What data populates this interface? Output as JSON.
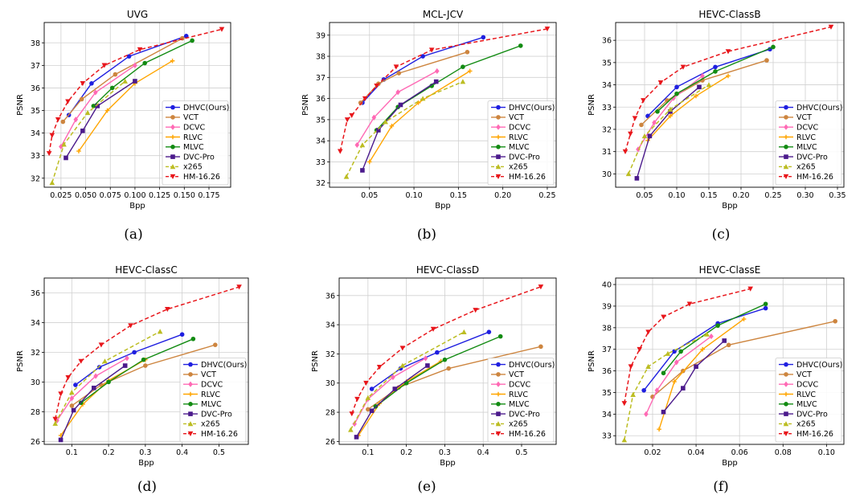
{
  "chart_data": [
    {
      "type": "line",
      "title": "UVG",
      "xlabel": "Bpp",
      "ylabel": "PSNR",
      "caption": "(a)",
      "xlim": [
        0.008,
        0.197
      ],
      "ylim": [
        31.6,
        38.9
      ],
      "xticks": [
        0.025,
        0.05,
        0.075,
        0.1,
        0.125,
        0.15,
        0.175
      ],
      "xtick_labels": [
        "0.025",
        "0.050",
        "0.075",
        "0.100",
        "0.125",
        "0.150",
        "0.175"
      ],
      "yticks": [
        32,
        33,
        34,
        35,
        36,
        37,
        38
      ],
      "yticklabels": [
        "32",
        "33",
        "34",
        "35",
        "36",
        "37",
        "38"
      ],
      "legend": "lower-right",
      "grid": true,
      "series": [
        {
          "name": "DHVC(Ours)",
          "x": [
            0.033,
            0.056,
            0.094,
            0.152
          ],
          "y": [
            34.8,
            36.2,
            37.4,
            38.3
          ]
        },
        {
          "name": "VCT",
          "x": [
            0.027,
            0.046,
            0.08,
            0.148
          ],
          "y": [
            34.5,
            35.5,
            36.6,
            38.2
          ]
        },
        {
          "name": "DCVC",
          "x": [
            0.025,
            0.04,
            0.06,
            0.1
          ],
          "y": [
            33.4,
            34.6,
            35.8,
            37.0
          ]
        },
        {
          "name": "RLVC",
          "x": [
            0.043,
            0.072,
            0.1,
            0.138
          ],
          "y": [
            33.2,
            35.0,
            36.2,
            37.2
          ]
        },
        {
          "name": "MLVC",
          "x": [
            0.058,
            0.077,
            0.11,
            0.158
          ],
          "y": [
            35.2,
            36.0,
            37.1,
            38.1
          ]
        },
        {
          "name": "DVC-Pro",
          "x": [
            0.03,
            0.047,
            0.062,
            0.1
          ],
          "y": [
            32.9,
            34.1,
            35.2,
            36.3
          ]
        },
        {
          "name": "x265",
          "x": [
            0.016,
            0.028,
            0.052,
            0.09
          ],
          "y": [
            31.8,
            33.5,
            34.9,
            36.3
          ]
        },
        {
          "name": "HM-16.26",
          "x": [
            0.013,
            0.016,
            0.022,
            0.032,
            0.047,
            0.069,
            0.105,
            0.188
          ],
          "y": [
            33.1,
            33.9,
            34.6,
            35.4,
            36.2,
            37.0,
            37.7,
            38.6
          ]
        }
      ]
    },
    {
      "type": "line",
      "title": "MCL-JCV",
      "xlabel": "Bpp",
      "ylabel": "PSNR",
      "caption": "(b)",
      "xlim": [
        0.005,
        0.26
      ],
      "ylim": [
        31.8,
        39.6
      ],
      "xticks": [
        0.05,
        0.1,
        0.15,
        0.2,
        0.25
      ],
      "xtick_labels": [
        "0.05",
        "0.10",
        "0.15",
        "0.20",
        "0.25"
      ],
      "yticks": [
        32,
        33,
        34,
        35,
        36,
        37,
        38,
        39
      ],
      "yticklabels": [
        "32",
        "33",
        "34",
        "35",
        "36",
        "37",
        "38",
        "39"
      ],
      "legend": "lower-right",
      "grid": true,
      "series": [
        {
          "name": "DHVC(Ours)",
          "x": [
            0.042,
            0.066,
            0.11,
            0.178
          ],
          "y": [
            35.8,
            36.9,
            38.0,
            38.9
          ]
        },
        {
          "name": "VCT",
          "x": [
            0.04,
            0.06,
            0.083,
            0.16
          ],
          "y": [
            35.8,
            36.7,
            37.2,
            38.2
          ]
        },
        {
          "name": "DCVC",
          "x": [
            0.036,
            0.055,
            0.082,
            0.126
          ],
          "y": [
            33.8,
            35.1,
            36.3,
            37.3
          ]
        },
        {
          "name": "RLVC",
          "x": [
            0.05,
            0.075,
            0.105,
            0.163
          ],
          "y": [
            33.0,
            34.7,
            35.8,
            37.3
          ]
        },
        {
          "name": "MLVC",
          "x": [
            0.058,
            0.082,
            0.12,
            0.155,
            0.22
          ],
          "y": [
            34.5,
            35.6,
            36.6,
            37.5,
            38.5
          ]
        },
        {
          "name": "DVC-Pro",
          "x": [
            0.042,
            0.06,
            0.085,
            0.125
          ],
          "y": [
            32.6,
            34.5,
            35.7,
            36.8
          ]
        },
        {
          "name": "x265",
          "x": [
            0.024,
            0.042,
            0.068,
            0.11,
            0.155
          ],
          "y": [
            32.3,
            33.8,
            34.9,
            36.0,
            36.8
          ]
        },
        {
          "name": "HM-16.26",
          "x": [
            0.017,
            0.025,
            0.03,
            0.045,
            0.058,
            0.08,
            0.12,
            0.25
          ],
          "y": [
            33.5,
            35.0,
            35.2,
            36.0,
            36.6,
            37.5,
            38.3,
            39.3
          ]
        }
      ]
    },
    {
      "type": "line",
      "title": "HEVC-ClassB",
      "xlabel": "Bpp",
      "ylabel": "PSNR",
      "caption": "(c)",
      "xlim": [
        0.005,
        0.36
      ],
      "ylim": [
        29.4,
        36.8
      ],
      "xticks": [
        0.05,
        0.1,
        0.15,
        0.2,
        0.25,
        0.3,
        0.35
      ],
      "xtick_labels": [
        "0.05",
        "0.10",
        "0.15",
        "0.20",
        "0.25",
        "0.30",
        "0.35"
      ],
      "yticks": [
        30,
        31,
        32,
        33,
        34,
        35,
        36
      ],
      "yticklabels": [
        "30",
        "31",
        "32",
        "33",
        "34",
        "35",
        "36"
      ],
      "legend": "lower-right",
      "grid": true,
      "series": [
        {
          "name": "DHVC(Ours)",
          "x": [
            0.055,
            0.1,
            0.16,
            0.245
          ],
          "y": [
            32.6,
            33.9,
            34.8,
            35.6
          ]
        },
        {
          "name": "VCT",
          "x": [
            0.045,
            0.085,
            0.14,
            0.24
          ],
          "y": [
            32.2,
            33.3,
            34.2,
            35.1
          ]
        },
        {
          "name": "DCVC",
          "x": [
            0.04,
            0.065,
            0.095,
            0.14
          ],
          "y": [
            31.1,
            32.3,
            33.4,
            34.4
          ]
        },
        {
          "name": "RLVC",
          "x": [
            0.055,
            0.09,
            0.13,
            0.18
          ],
          "y": [
            31.5,
            32.6,
            33.5,
            34.4
          ]
        },
        {
          "name": "MLVC",
          "x": [
            0.07,
            0.1,
            0.16,
            0.25
          ],
          "y": [
            32.8,
            33.6,
            34.6,
            35.7
          ]
        },
        {
          "name": "DVC-Pro",
          "x": [
            0.038,
            0.058,
            0.09,
            0.135
          ],
          "y": [
            29.8,
            31.7,
            32.8,
            33.9
          ]
        },
        {
          "name": "x265",
          "x": [
            0.025,
            0.05,
            0.09,
            0.15
          ],
          "y": [
            30.0,
            31.7,
            32.9,
            34.0
          ]
        },
        {
          "name": "HM-16.26",
          "x": [
            0.02,
            0.028,
            0.035,
            0.048,
            0.075,
            0.11,
            0.18,
            0.34
          ],
          "y": [
            31.0,
            31.8,
            32.5,
            33.3,
            34.1,
            34.8,
            35.5,
            36.6
          ]
        }
      ]
    },
    {
      "type": "line",
      "title": "HEVC-ClassC",
      "xlabel": "Bpp",
      "ylabel": "PSNR",
      "caption": "(d)",
      "xlim": [
        0.025,
        0.58
      ],
      "ylim": [
        25.8,
        37.0
      ],
      "xticks": [
        0.1,
        0.2,
        0.3,
        0.4,
        0.5
      ],
      "xtick_labels": [
        "0.1",
        "0.2",
        "0.3",
        "0.4",
        "0.5"
      ],
      "yticks": [
        26,
        28,
        30,
        32,
        34,
        36
      ],
      "yticklabels": [
        "26",
        "28",
        "30",
        "32",
        "34",
        "36"
      ],
      "legend": "lower-right",
      "grid": true,
      "series": [
        {
          "name": "DHVC(Ours)",
          "x": [
            0.11,
            0.175,
            0.27,
            0.4
          ],
          "y": [
            29.8,
            31.0,
            32.0,
            33.2
          ]
        },
        {
          "name": "VCT",
          "x": [
            0.1,
            0.18,
            0.3,
            0.49
          ],
          "y": [
            28.4,
            29.8,
            31.1,
            32.5
          ]
        },
        {
          "name": "DCVC",
          "x": [
            0.06,
            0.1,
            0.165,
            0.25
          ],
          "y": [
            27.4,
            28.9,
            30.4,
            31.6
          ]
        },
        {
          "name": "RLVC",
          "x": [
            0.07,
            0.13,
            0.2,
            0.3
          ],
          "y": [
            26.4,
            28.5,
            30.1,
            31.5
          ]
        },
        {
          "name": "MLVC",
          "x": [
            0.125,
            0.2,
            0.295,
            0.43
          ],
          "y": [
            28.6,
            30.0,
            31.5,
            32.9
          ]
        },
        {
          "name": "DVC-Pro",
          "x": [
            0.07,
            0.105,
            0.16,
            0.245
          ],
          "y": [
            26.1,
            28.1,
            29.6,
            31.1
          ]
        },
        {
          "name": "x265",
          "x": [
            0.055,
            0.1,
            0.19,
            0.34
          ],
          "y": [
            27.2,
            29.3,
            31.4,
            33.4
          ]
        },
        {
          "name": "HM-16.26",
          "x": [
            0.055,
            0.07,
            0.09,
            0.125,
            0.18,
            0.26,
            0.36,
            0.555
          ],
          "y": [
            27.5,
            29.2,
            30.3,
            31.4,
            32.5,
            33.8,
            34.9,
            36.4
          ]
        }
      ]
    },
    {
      "type": "line",
      "title": "HEVC-ClassD",
      "xlabel": "Bpp",
      "ylabel": "PSNR",
      "caption": "(e)",
      "xlim": [
        0.025,
        0.59
      ],
      "ylim": [
        25.8,
        37.2
      ],
      "xticks": [
        0.1,
        0.2,
        0.3,
        0.4,
        0.5
      ],
      "xtick_labels": [
        "0.1",
        "0.2",
        "0.3",
        "0.4",
        "0.5"
      ],
      "yticks": [
        26,
        28,
        30,
        32,
        34,
        36
      ],
      "yticklabels": [
        "26",
        "28",
        "30",
        "32",
        "34",
        "36"
      ],
      "legend": "lower-right",
      "grid": true,
      "series": [
        {
          "name": "DHVC(Ours)",
          "x": [
            0.11,
            0.185,
            0.28,
            0.415
          ],
          "y": [
            29.6,
            31.0,
            32.1,
            33.5
          ]
        },
        {
          "name": "VCT",
          "x": [
            0.1,
            0.18,
            0.31,
            0.55
          ],
          "y": [
            28.2,
            29.7,
            31.0,
            32.5
          ]
        },
        {
          "name": "DCVC",
          "x": [
            0.065,
            0.1,
            0.165,
            0.25
          ],
          "y": [
            27.2,
            28.9,
            30.4,
            31.7
          ]
        },
        {
          "name": "RLVC",
          "x": [
            0.075,
            0.13,
            0.2,
            0.29
          ],
          "y": [
            26.4,
            28.6,
            30.1,
            31.5
          ]
        },
        {
          "name": "MLVC",
          "x": [
            0.12,
            0.2,
            0.3,
            0.445
          ],
          "y": [
            28.4,
            30.0,
            31.6,
            33.2
          ]
        },
        {
          "name": "DVC-Pro",
          "x": [
            0.07,
            0.11,
            0.17,
            0.255
          ],
          "y": [
            26.3,
            28.1,
            29.6,
            31.2
          ]
        },
        {
          "name": "x265",
          "x": [
            0.055,
            0.1,
            0.19,
            0.35
          ],
          "y": [
            26.8,
            29.0,
            31.2,
            33.5
          ]
        },
        {
          "name": "HM-16.26",
          "x": [
            0.058,
            0.072,
            0.095,
            0.13,
            0.19,
            0.27,
            0.38,
            0.55
          ],
          "y": [
            27.9,
            28.9,
            30.0,
            31.1,
            32.4,
            33.7,
            35.0,
            36.6
          ]
        }
      ]
    },
    {
      "type": "line",
      "title": "HEVC-ClassE",
      "xlabel": "Bpp",
      "ylabel": "PSNR",
      "caption": "(f)",
      "xlim": [
        0.003,
        0.108
      ],
      "ylim": [
        32.6,
        40.3
      ],
      "xticks": [
        0.02,
        0.04,
        0.06,
        0.08,
        0.1
      ],
      "xtick_labels": [
        "0.02",
        "0.04",
        "0.06",
        "0.08",
        "0.10"
      ],
      "yticks": [
        33,
        34,
        35,
        36,
        37,
        38,
        39,
        40
      ],
      "yticklabels": [
        "33",
        "34",
        "35",
        "36",
        "37",
        "38",
        "39",
        "40"
      ],
      "legend": "lower-right",
      "grid": true,
      "series": [
        {
          "name": "DHVC(Ours)",
          "x": [
            0.016,
            0.03,
            0.05,
            0.072
          ],
          "y": [
            35.1,
            36.9,
            38.2,
            38.9
          ]
        },
        {
          "name": "VCT",
          "x": [
            0.02,
            0.034,
            0.055,
            0.104
          ],
          "y": [
            34.8,
            36.0,
            37.2,
            38.3
          ]
        },
        {
          "name": "DCVC",
          "x": [
            0.017,
            0.022,
            0.031,
            0.047
          ],
          "y": [
            34.0,
            35.1,
            36.4,
            37.6
          ]
        },
        {
          "name": "RLVC",
          "x": [
            0.023,
            0.03,
            0.043,
            0.062
          ],
          "y": [
            33.3,
            35.5,
            37.0,
            38.4
          ]
        },
        {
          "name": "MLVC",
          "x": [
            0.025,
            0.033,
            0.05,
            0.072
          ],
          "y": [
            35.9,
            36.9,
            38.1,
            39.1
          ]
        },
        {
          "name": "DVC-Pro",
          "x": [
            0.025,
            0.034,
            0.04,
            0.053
          ],
          "y": [
            34.1,
            35.2,
            36.2,
            37.4
          ]
        },
        {
          "name": "x265",
          "x": [
            0.007,
            0.011,
            0.018,
            0.027,
            0.045
          ],
          "y": [
            32.8,
            34.9,
            36.2,
            36.8,
            37.7
          ]
        },
        {
          "name": "HM-16.26",
          "x": [
            0.007,
            0.01,
            0.014,
            0.018,
            0.025,
            0.037,
            0.065
          ],
          "y": [
            34.5,
            36.2,
            37.0,
            37.8,
            38.5,
            39.1,
            39.8
          ]
        }
      ]
    }
  ],
  "series_styles": [
    {
      "name": "DHVC(Ours)",
      "color": "#1f1fe0",
      "marker": "circle",
      "dash": "solid"
    },
    {
      "name": "VCT",
      "color": "#cd853f",
      "marker": "circle",
      "dash": "solid"
    },
    {
      "name": "DCVC",
      "color": "#ff69b4",
      "marker": "diamond",
      "dash": "solid"
    },
    {
      "name": "RLVC",
      "color": "#ffa500",
      "marker": "plus",
      "dash": "solid"
    },
    {
      "name": "MLVC",
      "color": "#128b12",
      "marker": "circle",
      "dash": "solid"
    },
    {
      "name": "DVC-Pro",
      "color": "#4b1a8c",
      "marker": "square",
      "dash": "solid"
    },
    {
      "name": "x265",
      "color": "#bcbd22",
      "marker": "triangle-up",
      "dash": "dashed"
    },
    {
      "name": "HM-16.26",
      "color": "#e8161b",
      "marker": "triangle-down",
      "dash": "dashed"
    }
  ]
}
